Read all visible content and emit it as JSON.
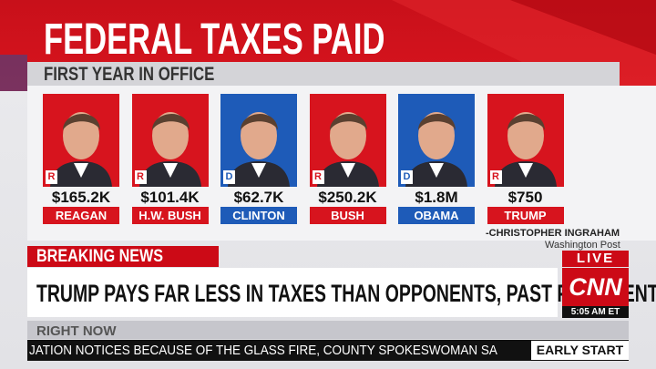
{
  "header": {
    "title": "FEDERAL TAXES PAID",
    "subtitle": "FIRST YEAR IN OFFICE"
  },
  "presidents": [
    {
      "party": "R",
      "amount": "$165.2K",
      "name": "REAGAN"
    },
    {
      "party": "R",
      "amount": "$101.4K",
      "name": "H.W. BUSH"
    },
    {
      "party": "D",
      "amount": "$62.7K",
      "name": "CLINTON"
    },
    {
      "party": "R",
      "amount": "$250.2K",
      "name": "BUSH"
    },
    {
      "party": "D",
      "amount": "$1.8M",
      "name": "OBAMA"
    },
    {
      "party": "R",
      "amount": "$750",
      "name": "TRUMP"
    }
  ],
  "credit": {
    "author": "-CHRISTOPHER INGRAHAM",
    "source": "Washington Post"
  },
  "lower_third": {
    "label": "BREAKING NEWS",
    "headline": "TRUMP PAYS FAR LESS IN TAXES THAN OPPONENTS, PAST PRESIDENTS",
    "live": "LIVE",
    "network": "CNN",
    "time": "5:05 AM ET",
    "section": "RIGHT NOW",
    "ticker": "JATION NOTICES BECAUSE OF THE GLASS FIRE, COUNTY SPOKESWOMAN SA",
    "show": "EARLY START"
  }
}
